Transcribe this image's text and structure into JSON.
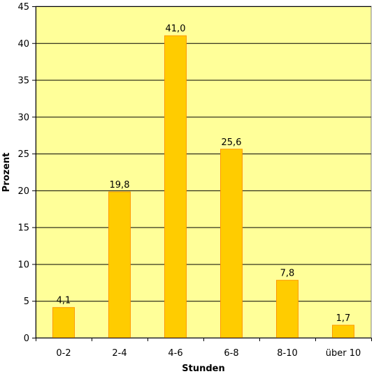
{
  "chart_data": {
    "type": "bar",
    "categories": [
      "0-2",
      "2-4",
      "4-6",
      "6-8",
      "8-10",
      "über 10"
    ],
    "values": [
      4.1,
      19.8,
      41.0,
      25.6,
      7.8,
      1.7
    ],
    "data_labels": [
      "4,1",
      "19,8",
      "41,0",
      "25,6",
      "7,8",
      "1,7"
    ],
    "title": "",
    "xlabel": "Stunden",
    "ylabel": "Prozent",
    "ylim": [
      0,
      45
    ],
    "yticks": [
      0,
      5,
      10,
      15,
      20,
      25,
      30,
      35,
      40,
      45
    ],
    "grid": true,
    "legend": "none",
    "colors": {
      "plot_background": "#ffff99",
      "bar_fill": "#ffcc00",
      "bar_stroke": "#ff9900",
      "gridline": "#000000"
    }
  }
}
